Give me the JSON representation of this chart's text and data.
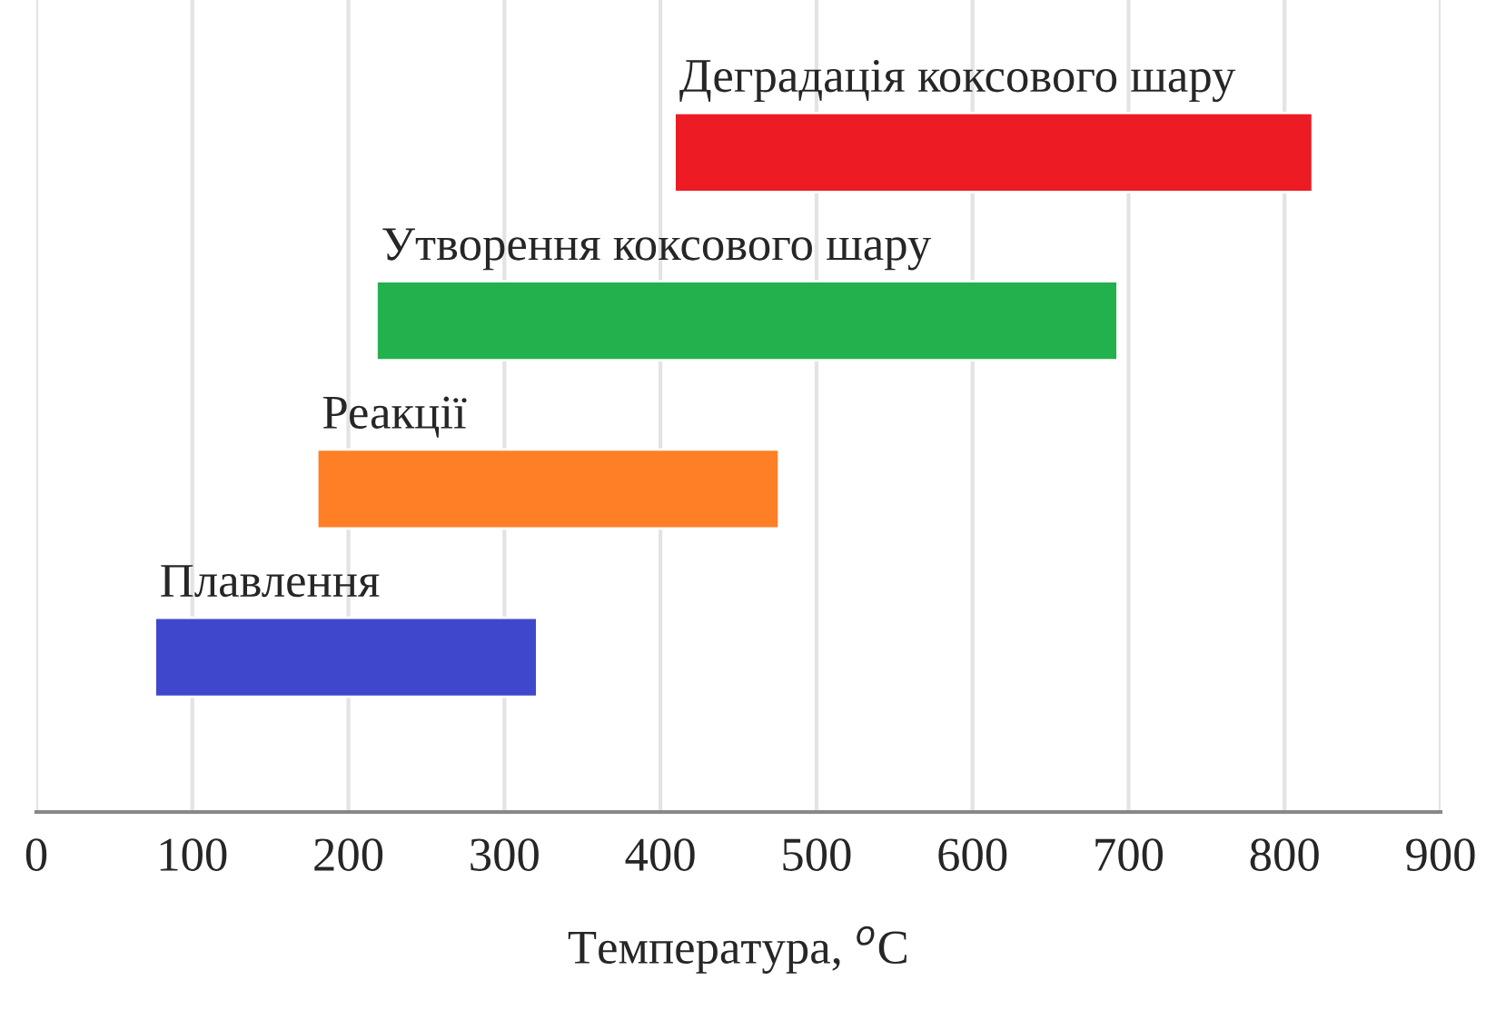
{
  "chart_data": {
    "type": "bar",
    "orientation": "horizontal",
    "categories": [
      "Деградація коксового шару",
      "Утворення коксового шару",
      "Реакції",
      "Плавлення"
    ],
    "base": [
      409,
      218,
      180,
      76
    ],
    "values": [
      409,
      475,
      296,
      245
    ],
    "colors": [
      "#ed1c24",
      "#22b14c",
      "#ff7f27",
      "#3f48cc"
    ],
    "xlabel": "Температура, $^{o}$C",
    "xlim": [
      0,
      900
    ],
    "xticks": [
      0,
      100,
      200,
      300,
      400,
      500,
      600,
      700,
      800,
      900
    ],
    "grid": "x",
    "tick_labels": "x"
  }
}
